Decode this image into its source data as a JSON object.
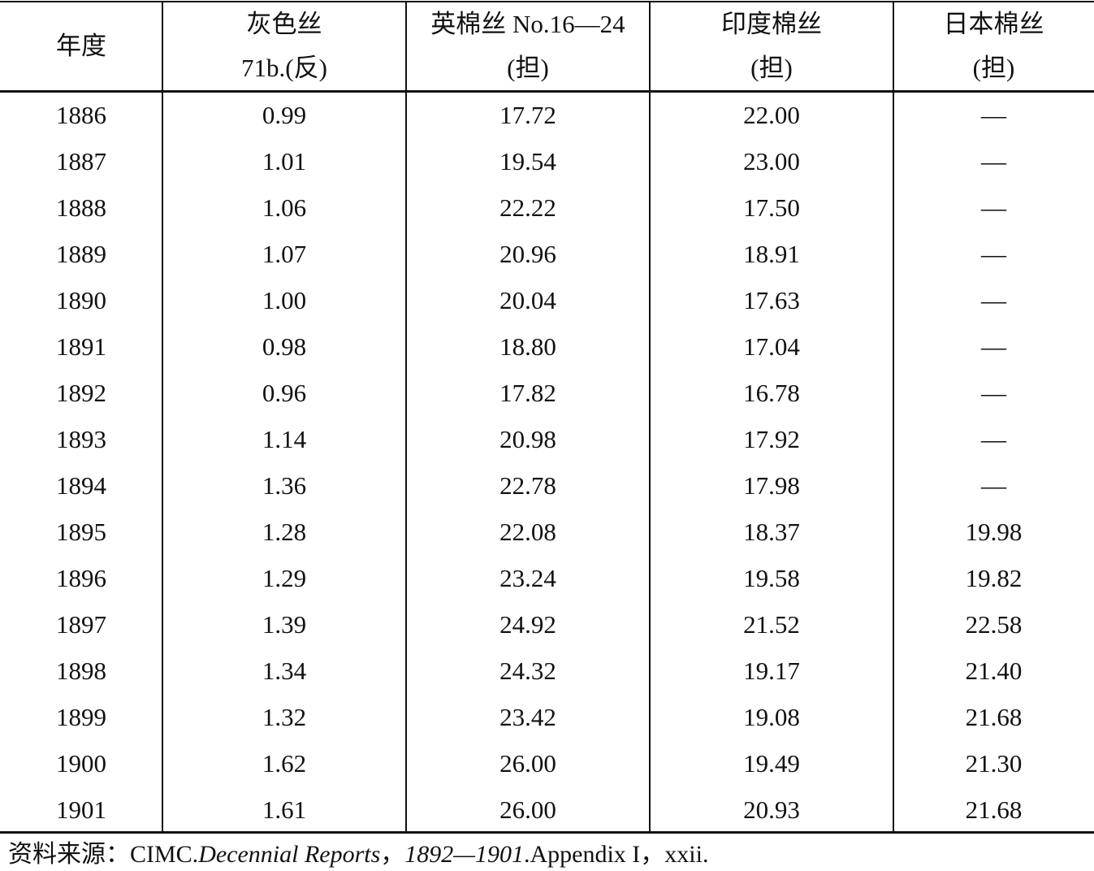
{
  "table": {
    "header": [
      [
        "年度"
      ],
      [
        "灰色丝",
        "71b.(反)"
      ],
      [
        "英棉丝 No.16—24",
        "(担)"
      ],
      [
        "印度棉丝",
        "(担)"
      ],
      [
        "日本棉丝",
        "(担)"
      ]
    ],
    "rows": [
      [
        "1886",
        "0.99",
        "17.72",
        "22.00",
        "—"
      ],
      [
        "1887",
        "1.01",
        "19.54",
        "23.00",
        "—"
      ],
      [
        "1888",
        "1.06",
        "22.22",
        "17.50",
        "—"
      ],
      [
        "1889",
        "1.07",
        "20.96",
        "18.91",
        "—"
      ],
      [
        "1890",
        "1.00",
        "20.04",
        "17.63",
        "—"
      ],
      [
        "1891",
        "0.98",
        "18.80",
        "17.04",
        "—"
      ],
      [
        "1892",
        "0.96",
        "17.82",
        "16.78",
        "—"
      ],
      [
        "1893",
        "1.14",
        "20.98",
        "17.92",
        "—"
      ],
      [
        "1894",
        "1.36",
        "22.78",
        "17.98",
        "—"
      ],
      [
        "1895",
        "1.28",
        "22.08",
        "18.37",
        "19.98"
      ],
      [
        "1896",
        "1.29",
        "23.24",
        "19.58",
        "19.82"
      ],
      [
        "1897",
        "1.39",
        "24.92",
        "21.52",
        "22.58"
      ],
      [
        "1898",
        "1.34",
        "24.32",
        "19.17",
        "21.40"
      ],
      [
        "1899",
        "1.32",
        "23.42",
        "19.08",
        "21.68"
      ],
      [
        "1900",
        "1.62",
        "26.00",
        "19.49",
        "21.30"
      ],
      [
        "1901",
        "1.61",
        "26.00",
        "20.93",
        "21.68"
      ]
    ]
  },
  "source": [
    "资料来源：CIMC.",
    "Decennial Reports",
    "，",
    "1892—1901",
    ".Appendix I，xxii."
  ]
}
